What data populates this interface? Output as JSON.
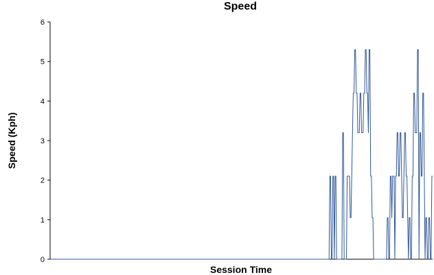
{
  "chart_data": {
    "type": "line",
    "title": "Speed",
    "xlabel": "Session Time",
    "ylabel": "Speed (Kph)",
    "ylim": [
      0,
      6
    ],
    "yticks": [
      "0",
      "1",
      "2",
      "3",
      "4",
      "5",
      "6"
    ],
    "grid": false,
    "legend": "none",
    "line_color": "#2d5597",
    "axis_color": "#000000",
    "series": [
      {
        "values": [
          0,
          0,
          0,
          0,
          0,
          0,
          0,
          0,
          0,
          0,
          0,
          0,
          0,
          0,
          0,
          0,
          0,
          0,
          0,
          0,
          0,
          0,
          0,
          0,
          0,
          0,
          0,
          0,
          0,
          0,
          0,
          0,
          0,
          0,
          0,
          0,
          0,
          0,
          0,
          0,
          0,
          0,
          0,
          0,
          0,
          0,
          0,
          0,
          0,
          0,
          0,
          0,
          0,
          0,
          0,
          0,
          0,
          0,
          0,
          0,
          0,
          0,
          0,
          0,
          0,
          0,
          0,
          0,
          0,
          0,
          0,
          0,
          0,
          0,
          0,
          0,
          0,
          0,
          0,
          0,
          0,
          0,
          0,
          0,
          0,
          0,
          0,
          0,
          0,
          0,
          0,
          0,
          0,
          0,
          0,
          0,
          0,
          0,
          0,
          0,
          0,
          0,
          0,
          0,
          0,
          0,
          0,
          0,
          0,
          0,
          0,
          0,
          0,
          0,
          0,
          0,
          0,
          0,
          0,
          0,
          0,
          0,
          0,
          0,
          0,
          0,
          0,
          0,
          0,
          0,
          0,
          0,
          0,
          0,
          0,
          0,
          0,
          0,
          0,
          0,
          0,
          0,
          0,
          0,
          0,
          0,
          0,
          0,
          0,
          0,
          0,
          0,
          0,
          0,
          0,
          0,
          0,
          0,
          0,
          0,
          0,
          0,
          0,
          0,
          0,
          0,
          0,
          0,
          0,
          0,
          0,
          0,
          0,
          0,
          0,
          0,
          0,
          0,
          0,
          0,
          0,
          0,
          0,
          0,
          0,
          0,
          0,
          0,
          0,
          0,
          0,
          0,
          0,
          0,
          0,
          0,
          0,
          0,
          0,
          0,
          0,
          0,
          0,
          0,
          0,
          0,
          0,
          0,
          0,
          0,
          0,
          0,
          0,
          0,
          0,
          0,
          0,
          0,
          0,
          0,
          0,
          0,
          0,
          0,
          0,
          0,
          0,
          0,
          0,
          0,
          0,
          0,
          0,
          0,
          0,
          0,
          0,
          0,
          0,
          0,
          0,
          0,
          0,
          0,
          0,
          0,
          0,
          0,
          0,
          0,
          0,
          0,
          0,
          0,
          0,
          0,
          0,
          0,
          0,
          0,
          0,
          0,
          0,
          0,
          0,
          0,
          0,
          0,
          0,
          0,
          0,
          0,
          0,
          0,
          0,
          0,
          0,
          0,
          0,
          0,
          0,
          0,
          0,
          0,
          0,
          0,
          0,
          0,
          0,
          0,
          0,
          0,
          0,
          0,
          0,
          0,
          0,
          0,
          0,
          0,
          0,
          0,
          0,
          0,
          0,
          0,
          0,
          0,
          0,
          0,
          0,
          0,
          0,
          0,
          0,
          0,
          0,
          0,
          0,
          0,
          0,
          0,
          0,
          0,
          0,
          0,
          0,
          0,
          0,
          0,
          0,
          0,
          0,
          0,
          0,
          0,
          0,
          0,
          0,
          0,
          0,
          0,
          0,
          0,
          0,
          0,
          0,
          0,
          0,
          0,
          0,
          0,
          0,
          0,
          0,
          0,
          0,
          0,
          0,
          0,
          0,
          0,
          0,
          0,
          0,
          0,
          0,
          0,
          0,
          0,
          2.1,
          2.1,
          0,
          0,
          2.1,
          2.1,
          0,
          2.1,
          2.1,
          0,
          0,
          0,
          0,
          0,
          0,
          0,
          0,
          3.2,
          3.2,
          0,
          0,
          0,
          0,
          2.1,
          2.1,
          2.1,
          2.1,
          1.05,
          1.05,
          2.1,
          3.2,
          4.2,
          4.2,
          5.3,
          5.3,
          4.2,
          4.2,
          3.2,
          3.2,
          3.2,
          4.2,
          4.2,
          3.2,
          3.2,
          3.2,
          4.2,
          4.2,
          5.3,
          5.3,
          4.2,
          4.2,
          3.2,
          5.3,
          5.3,
          2.1,
          2.1,
          1.05,
          1.05,
          0,
          0,
          0,
          0,
          0,
          0,
          0,
          0,
          0,
          0,
          0,
          0,
          0,
          0,
          0,
          0,
          0,
          0,
          1.05,
          1.05,
          0,
          0,
          2.1,
          2.1,
          1.05,
          2.1,
          2.1,
          2.1,
          0,
          2.1,
          2.1,
          3.2,
          3.2,
          2.1,
          2.1,
          3.2,
          3.2,
          2.1,
          1.05,
          1.05,
          2.1,
          3.2,
          3.2,
          2.1,
          2.1,
          1.05,
          0,
          1.05,
          1.05,
          0,
          0,
          2.1,
          2.1,
          4.2,
          4.2,
          3.2,
          3.2,
          3.2,
          5.3,
          5.3,
          0,
          3.2,
          3.2,
          2.1,
          2.1,
          4.2,
          4.2,
          2.1,
          0,
          1.05,
          1.05,
          0,
          0,
          1.05,
          1.05,
          0,
          0,
          2.1,
          2.1
        ]
      }
    ]
  }
}
